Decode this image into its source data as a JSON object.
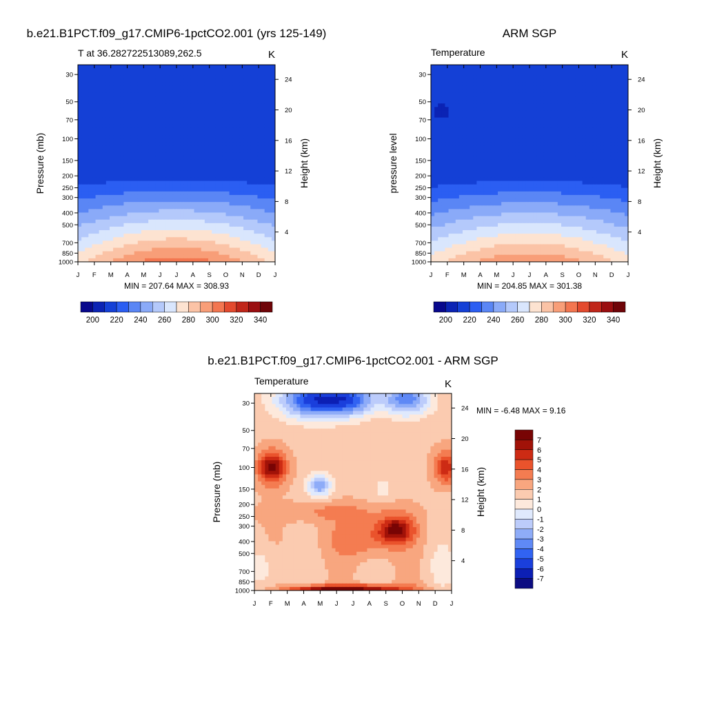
{
  "palette": {
    "temperature": [
      "#08088c",
      "#0b23b4",
      "#1440d6",
      "#2b5ef2",
      "#5a86f5",
      "#8aaaf8",
      "#b4c9fb",
      "#d9e6fd",
      "#fde3d1",
      "#fbc3a6",
      "#f89e78",
      "#f37650",
      "#e34a2e",
      "#c0261a",
      "#9a0e10",
      "#6f0408"
    ],
    "difference": [
      "#0c0c82",
      "#0c1fb4",
      "#1a3fdc",
      "#3163f2",
      "#5f89f6",
      "#8eacf8",
      "#bcccfb",
      "#dfe9fd",
      "#fde9dc",
      "#fbcbb0",
      "#f8a67f",
      "#f47c51",
      "#ea532c",
      "#cd2b14",
      "#a11208",
      "#780404"
    ]
  },
  "charts": [
    {
      "id": "model",
      "main_title": "b.e21.B1PCT.f09_g17.CMIP6-1pctCO2.001 (yrs 125-149)",
      "left_title": "T at 36.282722513089,262.5",
      "right_title": "K",
      "ylabel": "Pressure (mb)",
      "ylabel_right": "Height (km)",
      "stats": "MIN = 207.64 MAX = 308.93",
      "colorbar_ticks": [
        "200",
        "220",
        "240",
        "260",
        "280",
        "300",
        "320",
        "340"
      ]
    },
    {
      "id": "obs",
      "main_title": "ARM SGP",
      "left_title": "Temperature",
      "right_title": "K",
      "ylabel": "pressure level",
      "ylabel_right": "Height (km)",
      "stats": "MIN = 204.85 MAX = 301.38",
      "colorbar_ticks": [
        "200",
        "220",
        "240",
        "260",
        "280",
        "300",
        "320",
        "340"
      ]
    },
    {
      "id": "diff",
      "main_title": "b.e21.B1PCT.f09_g17.CMIP6-1pctCO2.001 - ARM SGP",
      "left_title": "Temperature",
      "right_title": "K",
      "ylabel": "Pressure (mb)",
      "ylabel_right": "Height (km)",
      "stats": "MIN =  -6.48 MAX =   9.16",
      "colorbar_labels": [
        "7",
        "6",
        "5",
        "4",
        "3",
        "2",
        "1",
        "0",
        "-1",
        "-2",
        "-3",
        "-4",
        "-5",
        "-6",
        "-7"
      ]
    }
  ],
  "chart_data": [
    {
      "type": "heatmap",
      "title": "T at 36.282722513089,262.5",
      "units": "K",
      "xlabel": "",
      "ylabel": "Pressure (mb)",
      "x": [
        "J",
        "F",
        "M",
        "A",
        "M",
        "J",
        "J",
        "A",
        "S",
        "O",
        "N",
        "D",
        "J"
      ],
      "y_pressure_mb": [
        30,
        50,
        70,
        100,
        150,
        200,
        250,
        300,
        400,
        500,
        700,
        850,
        1000
      ],
      "y_height_km": [
        4,
        8,
        12,
        16,
        20,
        24
      ],
      "levels": [
        190,
        200,
        210,
        220,
        230,
        240,
        250,
        260,
        270,
        280,
        290,
        300,
        310,
        320,
        330,
        340,
        350
      ],
      "colorbar_ticks": [
        200,
        220,
        240,
        260,
        280,
        300,
        320,
        340
      ],
      "min": 207.64,
      "max": 308.93
    },
    {
      "type": "heatmap",
      "title": "Temperature",
      "units": "K",
      "xlabel": "",
      "ylabel": "pressure level",
      "x": [
        "J",
        "F",
        "M",
        "A",
        "M",
        "J",
        "J",
        "A",
        "S",
        "O",
        "N",
        "D",
        "J"
      ],
      "y_pressure_mb": [
        30,
        50,
        70,
        100,
        150,
        200,
        250,
        300,
        400,
        500,
        700,
        850,
        1000
      ],
      "y_height_km": [
        4,
        8,
        12,
        16,
        20,
        24
      ],
      "levels": [
        190,
        200,
        210,
        220,
        230,
        240,
        250,
        260,
        270,
        280,
        290,
        300,
        310,
        320,
        330,
        340,
        350
      ],
      "colorbar_ticks": [
        200,
        220,
        240,
        260,
        280,
        300,
        320,
        340
      ],
      "min": 204.85,
      "max": 301.38
    },
    {
      "type": "heatmap",
      "title": "Temperature",
      "units": "K",
      "xlabel": "",
      "ylabel": "Pressure (mb)",
      "x": [
        "J",
        "F",
        "M",
        "A",
        "M",
        "J",
        "J",
        "A",
        "S",
        "O",
        "N",
        "D",
        "J"
      ],
      "y_pressure_mb": [
        30,
        50,
        70,
        100,
        150,
        200,
        250,
        300,
        400,
        500,
        700,
        850,
        1000
      ],
      "y_height_km": [
        4,
        8,
        12,
        16,
        20,
        24
      ],
      "levels": [
        -7,
        -6,
        -5,
        -4,
        -3,
        -2,
        -1,
        0,
        1,
        2,
        3,
        4,
        5,
        6,
        7
      ],
      "min": -6.48,
      "max": 9.16
    }
  ]
}
